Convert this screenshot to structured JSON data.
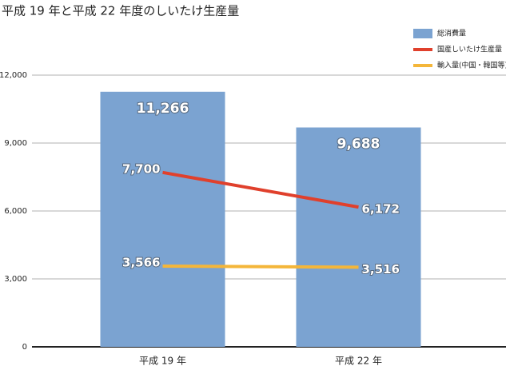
{
  "chart_data": {
    "type": "bar",
    "title": "平成 19 年と平成 22 年度のしいたけ生産量",
    "categories": [
      "平成 19 年",
      "平成 22 年"
    ],
    "series": [
      {
        "name": "総消費量",
        "type": "bar",
        "color": "#7ba3d1",
        "values": [
          11266,
          9688
        ],
        "value_labels": [
          "11,266",
          "9,688"
        ]
      },
      {
        "name": "国産しいたけ生産量",
        "type": "line",
        "color": "#e0402c",
        "values": [
          7700,
          6172
        ],
        "value_labels": [
          "7,700",
          "6,172"
        ]
      },
      {
        "name": "輸入量(中国・韓国等)",
        "type": "line",
        "color": "#f4b63a",
        "values": [
          3566,
          3516
        ],
        "value_labels": [
          "3,566",
          "3,516"
        ]
      }
    ],
    "ylim": [
      0,
      12000
    ],
    "yticks": [
      0,
      {
        "value": 3000,
        "label": "3,000"
      },
      {
        "value": 6000,
        "label": "6,000"
      },
      {
        "value": 9000,
        "label": "9,000"
      },
      {
        "value": 12000,
        "label": "12,000"
      }
    ],
    "grid": true,
    "legend": "top-right"
  }
}
